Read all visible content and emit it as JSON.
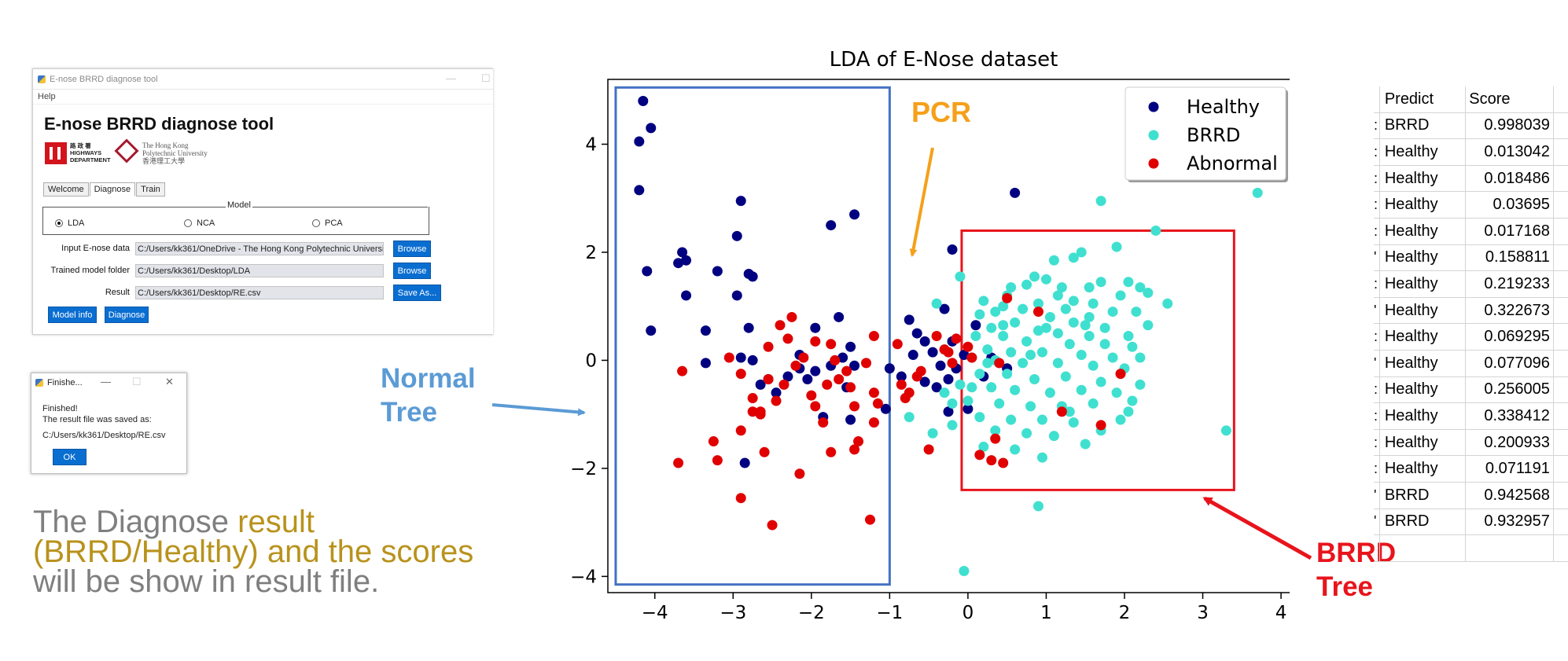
{
  "tool_window": {
    "title": "E-nose BRRD diagnose tool",
    "menu": [
      "Help"
    ],
    "heading": "E-nose BRRD diagnose tool",
    "logos": {
      "hyd_lines": [
        "路 政 署",
        "HIGHWAYS",
        "DEPARTMENT"
      ],
      "polyu_lines": [
        "The Hong Kong",
        "Polytechnic University",
        "香港理工大學"
      ]
    },
    "tabs": [
      "Welcome",
      "Diagnose",
      "Train"
    ],
    "active_tab": "Diagnose",
    "model_group_label": "Model",
    "model_options": [
      "LDA",
      "NCA",
      "PCA"
    ],
    "selected_model": "LDA",
    "fields": {
      "input_label": "Input E-nose data",
      "input_value": "C:/Users/kk361/OneDrive - The Hong Kong Polytechnic University",
      "model_label": "Trained model folder",
      "model_value": "C:/Users/kk361/Desktop/LDA",
      "result_label": "Result",
      "result_value": "C:/Users/kk361/Desktop/RE.csv"
    },
    "buttons": {
      "browse": "Browse",
      "save_as": "Save As...",
      "model_info": "Model info",
      "diagnose": "Diagnose"
    }
  },
  "finished_dialog": {
    "title": "Finishe...",
    "line1": "Finished!",
    "line2": "The result file was saved as:",
    "path": "C:/Users/kk361/Desktop/RE.csv",
    "ok": "OK"
  },
  "caption": {
    "part1": "The Diagnose ",
    "part2": "result (BRRD/Healthy) and the scores",
    "part3": " will be show in result file."
  },
  "annotations": {
    "pcr": "PCR",
    "normal_tree": [
      "Normal",
      "Tree"
    ],
    "brrd_tree": [
      "BRRD",
      "Tree"
    ],
    "colors": {
      "pcr": "#f5a01a",
      "normal": "#5b9bd5",
      "brrd": "#e8141c"
    }
  },
  "results_table": {
    "headers": [
      "Predict",
      "Score"
    ],
    "rows": [
      [
        "BRRD",
        "0.998039"
      ],
      [
        "Healthy",
        "0.013042"
      ],
      [
        "Healthy",
        "0.018486"
      ],
      [
        "Healthy",
        "0.03695"
      ],
      [
        "Healthy",
        "0.017168"
      ],
      [
        "Healthy",
        "0.158811"
      ],
      [
        "Healthy",
        "0.219233"
      ],
      [
        "Healthy",
        "0.322673"
      ],
      [
        "Healthy",
        "0.069295"
      ],
      [
        "Healthy",
        "0.077096"
      ],
      [
        "Healthy",
        "0.256005"
      ],
      [
        "Healthy",
        "0.338412"
      ],
      [
        "Healthy",
        "0.200933"
      ],
      [
        "Healthy",
        "0.071191"
      ],
      [
        "BRRD",
        "0.942568"
      ],
      [
        "BRRD",
        "0.932957"
      ]
    ],
    "row_index_fragments": [
      ":",
      ":",
      ":",
      ":",
      ":",
      "'",
      ":",
      "'",
      ":",
      "'",
      ":",
      ":",
      ":",
      ":",
      "'",
      "'"
    ]
  },
  "chart_data": {
    "type": "scatter",
    "title": "LDA of E-Nose dataset",
    "xlabel": "",
    "ylabel": "",
    "xlim": [
      -4.6,
      4.15
    ],
    "ylim": [
      -4.3,
      5.2
    ],
    "xticks": [
      -4,
      -3,
      -2,
      -1,
      0,
      1,
      2,
      3,
      4
    ],
    "yticks": [
      -4,
      -2,
      0,
      2,
      4
    ],
    "grid": false,
    "legend_position": "top-right",
    "regions": [
      {
        "label": "Normal Tree",
        "x": [
          -4.5,
          -1.0
        ],
        "y": [
          -4.15,
          5.05
        ],
        "color": "#4472c4"
      },
      {
        "label": "BRRD Tree",
        "x": [
          -0.08,
          3.4
        ],
        "y": [
          -2.4,
          2.4
        ],
        "color": "#e8141c"
      }
    ],
    "series": [
      {
        "name": "Healthy",
        "color": "#000080",
        "points": [
          [
            -4.15,
            4.8
          ],
          [
            -4.2,
            4.05
          ],
          [
            -4.05,
            4.3
          ],
          [
            -4.2,
            3.15
          ],
          [
            -4.1,
            1.65
          ],
          [
            -4.05,
            0.55
          ],
          [
            -3.6,
            1.85
          ],
          [
            -3.7,
            1.8
          ],
          [
            -3.65,
            2.0
          ],
          [
            -3.6,
            1.2
          ],
          [
            -3.2,
            1.65
          ],
          [
            -2.95,
            2.3
          ],
          [
            -2.9,
            2.95
          ],
          [
            -2.8,
            1.6
          ],
          [
            -2.75,
            1.55
          ],
          [
            -2.95,
            1.2
          ],
          [
            -2.8,
            0.6
          ],
          [
            -3.35,
            0.55
          ],
          [
            -2.9,
            0.05
          ],
          [
            -2.75,
            0.0
          ],
          [
            -2.65,
            -0.45
          ],
          [
            -2.55,
            -0.35
          ],
          [
            -2.45,
            -0.6
          ],
          [
            -2.3,
            -0.3
          ],
          [
            -2.15,
            -0.15
          ],
          [
            -2.05,
            -0.35
          ],
          [
            -1.95,
            -0.2
          ],
          [
            -1.95,
            0.6
          ],
          [
            -1.75,
            -0.1
          ],
          [
            -1.6,
            0.05
          ],
          [
            -1.5,
            0.25
          ],
          [
            -1.45,
            -0.1
          ],
          [
            -1.5,
            -1.1
          ],
          [
            -1.85,
            -1.05
          ],
          [
            -1.65,
            0.8
          ],
          [
            -1.45,
            2.7
          ],
          [
            -1.75,
            2.5
          ],
          [
            -1.0,
            -0.15
          ],
          [
            -0.85,
            -0.3
          ],
          [
            -0.75,
            0.75
          ],
          [
            -0.65,
            0.5
          ],
          [
            -0.55,
            0.35
          ],
          [
            -0.45,
            0.15
          ],
          [
            -0.35,
            -0.1
          ],
          [
            -0.2,
            0.35
          ],
          [
            -0.15,
            -0.15
          ],
          [
            -0.05,
            0.1
          ],
          [
            -0.3,
            0.95
          ],
          [
            0.1,
            0.65
          ],
          [
            -0.4,
            -0.5
          ],
          [
            -0.25,
            -0.95
          ],
          [
            0.0,
            -0.9
          ],
          [
            -0.2,
            2.05
          ],
          [
            0.6,
            3.1
          ],
          [
            -3.35,
            -0.05
          ],
          [
            -2.85,
            -1.9
          ],
          [
            -1.05,
            -0.9
          ],
          [
            -0.7,
            0.1
          ],
          [
            0.2,
            -0.3
          ],
          [
            0.5,
            -0.15
          ],
          [
            0.3,
            0.05
          ],
          [
            -0.25,
            -0.35
          ],
          [
            -2.15,
            0.1
          ],
          [
            -1.55,
            -0.5
          ],
          [
            -0.55,
            -0.4
          ]
        ]
      },
      {
        "name": "BRRD",
        "color": "#40e0d0",
        "points": [
          [
            3.7,
            3.1
          ],
          [
            1.7,
            2.95
          ],
          [
            2.4,
            2.4
          ],
          [
            1.9,
            2.1
          ],
          [
            1.45,
            2.0
          ],
          [
            1.35,
            1.9
          ],
          [
            1.1,
            1.85
          ],
          [
            0.85,
            1.55
          ],
          [
            1.7,
            1.45
          ],
          [
            2.05,
            1.45
          ],
          [
            1.0,
            1.5
          ],
          [
            0.75,
            1.4
          ],
          [
            0.55,
            1.35
          ],
          [
            1.55,
            1.35
          ],
          [
            2.2,
            1.35
          ],
          [
            2.3,
            1.25
          ],
          [
            1.15,
            1.2
          ],
          [
            1.35,
            1.1
          ],
          [
            0.9,
            1.05
          ],
          [
            2.55,
            1.05
          ],
          [
            0.45,
            1.0
          ],
          [
            0.7,
            0.95
          ],
          [
            1.25,
            0.95
          ],
          [
            1.85,
            0.9
          ],
          [
            2.15,
            0.9
          ],
          [
            0.15,
            0.85
          ],
          [
            0.35,
            0.9
          ],
          [
            1.05,
            0.8
          ],
          [
            1.55,
            0.8
          ],
          [
            2.3,
            0.65
          ],
          [
            0.6,
            0.7
          ],
          [
            1.35,
            0.7
          ],
          [
            1.75,
            0.6
          ],
          [
            0.3,
            0.6
          ],
          [
            0.9,
            0.55
          ],
          [
            1.15,
            0.5
          ],
          [
            1.55,
            0.45
          ],
          [
            2.05,
            0.45
          ],
          [
            0.1,
            0.45
          ],
          [
            0.45,
            0.45
          ],
          [
            0.75,
            0.35
          ],
          [
            1.3,
            0.3
          ],
          [
            1.75,
            0.3
          ],
          [
            2.1,
            0.25
          ],
          [
            0.25,
            0.2
          ],
          [
            0.55,
            0.15
          ],
          [
            0.95,
            0.15
          ],
          [
            1.45,
            0.1
          ],
          [
            1.85,
            0.05
          ],
          [
            2.2,
            0.05
          ],
          [
            0.05,
            0.05
          ],
          [
            0.35,
            0.0
          ],
          [
            0.7,
            -0.05
          ],
          [
            1.15,
            -0.05
          ],
          [
            1.6,
            -0.1
          ],
          [
            2.0,
            -0.15
          ],
          [
            0.15,
            -0.25
          ],
          [
            0.5,
            -0.25
          ],
          [
            0.85,
            -0.35
          ],
          [
            1.25,
            -0.3
          ],
          [
            1.7,
            -0.4
          ],
          [
            2.2,
            -0.45
          ],
          [
            -0.1,
            -0.45
          ],
          [
            0.3,
            -0.5
          ],
          [
            0.6,
            -0.55
          ],
          [
            1.05,
            -0.6
          ],
          [
            1.45,
            -0.55
          ],
          [
            1.9,
            -0.6
          ],
          [
            0.0,
            -0.75
          ],
          [
            0.4,
            -0.8
          ],
          [
            0.8,
            -0.85
          ],
          [
            1.2,
            -0.85
          ],
          [
            1.6,
            -0.8
          ],
          [
            2.05,
            -0.95
          ],
          [
            0.15,
            -1.05
          ],
          [
            0.55,
            -1.1
          ],
          [
            0.95,
            -1.1
          ],
          [
            1.35,
            -1.15
          ],
          [
            1.95,
            -1.1
          ],
          [
            -0.2,
            -1.2
          ],
          [
            0.35,
            -1.3
          ],
          [
            0.75,
            -1.35
          ],
          [
            1.1,
            -1.4
          ],
          [
            1.5,
            -1.55
          ],
          [
            0.2,
            -1.6
          ],
          [
            0.6,
            -1.65
          ],
          [
            0.95,
            -1.8
          ],
          [
            3.3,
            -1.3
          ],
          [
            0.9,
            -2.7
          ],
          [
            -0.05,
            -3.9
          ],
          [
            -0.3,
            -0.6
          ],
          [
            -0.75,
            -1.05
          ],
          [
            -0.45,
            -1.35
          ],
          [
            -0.2,
            -0.8
          ],
          [
            0.05,
            -0.5
          ],
          [
            -0.4,
            1.05
          ],
          [
            -0.1,
            1.55
          ],
          [
            0.5,
            1.2
          ],
          [
            0.2,
            1.1
          ],
          [
            1.6,
            1.05
          ],
          [
            1.95,
            1.2
          ],
          [
            0.45,
            0.65
          ],
          [
            1.0,
            0.6
          ],
          [
            2.1,
            -0.75
          ],
          [
            1.3,
            -0.95
          ],
          [
            1.7,
            -1.3
          ],
          [
            0.25,
            -0.05
          ],
          [
            0.8,
            0.1
          ],
          [
            1.5,
            0.65
          ],
          [
            1.2,
            1.35
          ]
        ]
      },
      {
        "name": "Abnormal",
        "color": "#e00000",
        "points": [
          [
            -3.65,
            -0.2
          ],
          [
            -3.7,
            -1.9
          ],
          [
            -3.25,
            -1.5
          ],
          [
            -3.2,
            -1.85
          ],
          [
            -3.05,
            0.05
          ],
          [
            -2.9,
            -0.25
          ],
          [
            -2.75,
            -0.7
          ],
          [
            -2.75,
            -0.95
          ],
          [
            -2.65,
            -1.0
          ],
          [
            -2.9,
            -1.3
          ],
          [
            -2.55,
            -0.35
          ],
          [
            -2.55,
            0.25
          ],
          [
            -2.4,
            0.65
          ],
          [
            -2.3,
            0.4
          ],
          [
            -2.35,
            -0.45
          ],
          [
            -2.2,
            -0.1
          ],
          [
            -2.1,
            0.05
          ],
          [
            -2.0,
            -0.65
          ],
          [
            -1.95,
            -0.85
          ],
          [
            -1.85,
            -1.15
          ],
          [
            -1.8,
            -0.45
          ],
          [
            -1.75,
            0.3
          ],
          [
            -1.7,
            0.0
          ],
          [
            -1.55,
            -0.2
          ],
          [
            -1.5,
            -0.5
          ],
          [
            -1.45,
            -0.85
          ],
          [
            -1.4,
            -1.5
          ],
          [
            -1.45,
            -1.65
          ],
          [
            -1.2,
            -0.6
          ],
          [
            -1.15,
            -0.8
          ],
          [
            -1.2,
            -1.15
          ],
          [
            -1.2,
            0.45
          ],
          [
            -0.9,
            0.3
          ],
          [
            -0.85,
            -0.45
          ],
          [
            -0.8,
            -0.7
          ],
          [
            -0.75,
            -0.6
          ],
          [
            -0.65,
            -0.3
          ],
          [
            -0.6,
            -0.2
          ],
          [
            -0.5,
            -1.65
          ],
          [
            -0.4,
            0.45
          ],
          [
            -0.25,
            0.15
          ],
          [
            -0.2,
            -0.05
          ],
          [
            -0.15,
            0.4
          ],
          [
            0.0,
            0.25
          ],
          [
            0.05,
            0.05
          ],
          [
            0.35,
            -1.45
          ],
          [
            0.3,
            -1.85
          ],
          [
            0.45,
            -1.9
          ],
          [
            0.15,
            -1.75
          ],
          [
            0.5,
            1.15
          ],
          [
            0.9,
            0.9
          ],
          [
            1.2,
            -0.95
          ],
          [
            1.7,
            -1.2
          ],
          [
            1.95,
            -0.25
          ],
          [
            0.4,
            -0.05
          ],
          [
            -2.9,
            -2.55
          ],
          [
            -2.5,
            -3.05
          ],
          [
            -2.15,
            -2.1
          ],
          [
            -1.25,
            -2.95
          ],
          [
            -2.6,
            -1.7
          ],
          [
            -1.75,
            -1.7
          ],
          [
            -2.25,
            0.8
          ],
          [
            -1.95,
            0.35
          ],
          [
            -1.65,
            -0.35
          ],
          [
            -2.45,
            -0.75
          ],
          [
            -2.65,
            -0.95
          ],
          [
            -1.3,
            -0.05
          ],
          [
            -0.3,
            0.2
          ]
        ]
      }
    ]
  }
}
